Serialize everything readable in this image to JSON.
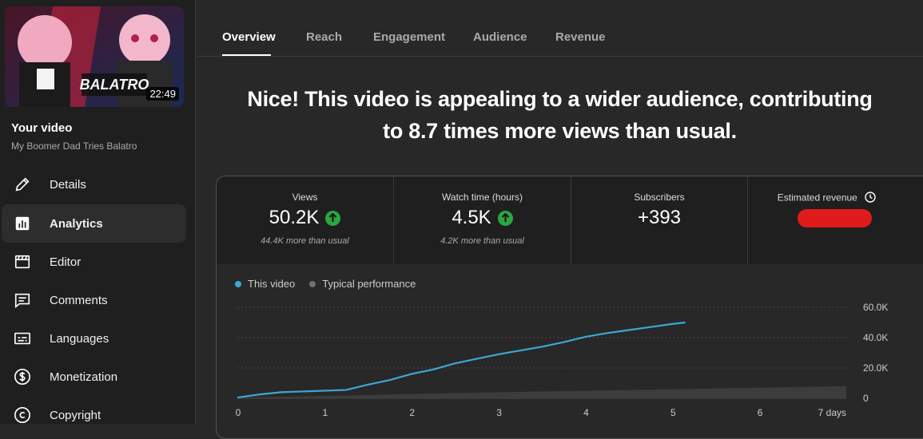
{
  "sidebar": {
    "thumbnail_duration": "22:49",
    "thumbnail_art_text": "BALATRO",
    "your_video_label": "Your video",
    "video_title": "My Boomer Dad Tries Balatro",
    "items": [
      {
        "label": "Details",
        "icon": "pencil-icon"
      },
      {
        "label": "Analytics",
        "icon": "analytics-icon",
        "active": true
      },
      {
        "label": "Editor",
        "icon": "editor-icon"
      },
      {
        "label": "Comments",
        "icon": "comments-icon"
      },
      {
        "label": "Languages",
        "icon": "subtitles-icon"
      },
      {
        "label": "Monetization",
        "icon": "dollar-icon"
      },
      {
        "label": "Copyright",
        "icon": "copyright-icon"
      }
    ]
  },
  "tabs": [
    {
      "label": "Overview",
      "active": true
    },
    {
      "label": "Reach"
    },
    {
      "label": "Engagement"
    },
    {
      "label": "Audience"
    },
    {
      "label": "Revenue"
    }
  ],
  "headline": {
    "line1": "Nice! This video is appealing to a wider audience, contributing",
    "line2": "to 8.7 times more views than usual."
  },
  "metrics": [
    {
      "label": "Views",
      "value": "50.2K",
      "trend": "up",
      "sub": "44.4K more than usual"
    },
    {
      "label": "Watch time (hours)",
      "value": "4.5K",
      "trend": "up",
      "sub": "4.2K more than usual"
    },
    {
      "label": "Subscribers",
      "value": "+393"
    },
    {
      "label": "Estimated revenue",
      "value_hidden": true,
      "icon": "clock-icon"
    }
  ],
  "colors": {
    "this_video": "#3ea6d4",
    "typical": "#6f6f6f",
    "trend_up": "#2ba640",
    "redaction": "#e01b1b"
  },
  "chart_data": {
    "type": "line",
    "legend": [
      "This video",
      "Typical performance"
    ],
    "xlabel": "",
    "ylabel": "",
    "xlim": [
      0,
      7
    ],
    "ylim": [
      0,
      60000
    ],
    "x_ticks": [
      "0",
      "1",
      "2",
      "3",
      "4",
      "5",
      "6",
      "7 days"
    ],
    "y_ticks": [
      "60.0K",
      "40.0K",
      "20.0K",
      "0"
    ],
    "series": [
      {
        "name": "This video",
        "x": [
          0,
          0.25,
          0.5,
          0.75,
          1.0,
          1.25,
          1.5,
          1.75,
          2.0,
          2.25,
          2.5,
          2.75,
          3.0,
          3.25,
          3.5,
          3.75,
          4.0,
          4.25,
          4.5,
          4.75,
          5.0,
          5.15
        ],
        "values": [
          500,
          2500,
          4000,
          4500,
          5000,
          5500,
          9000,
          12000,
          16000,
          19000,
          23000,
          26000,
          29000,
          31500,
          34000,
          37000,
          40500,
          43000,
          45000,
          47000,
          49000,
          50000
        ]
      },
      {
        "name": "Typical performance",
        "type": "area",
        "x": [
          0,
          1,
          2,
          3,
          4,
          5,
          6,
          7
        ],
        "low": [
          0,
          0,
          0,
          0,
          0,
          0,
          0,
          0
        ],
        "high": [
          500,
          1500,
          2800,
          4000,
          5000,
          6000,
          7000,
          8000
        ]
      }
    ]
  }
}
